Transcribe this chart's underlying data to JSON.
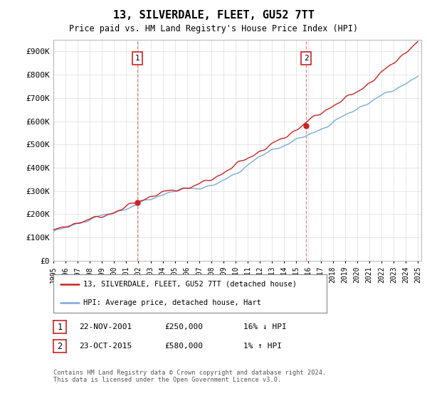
{
  "title": "13, SILVERDALE, FLEET, GU52 7TT",
  "subtitle": "Price paid vs. HM Land Registry's House Price Index (HPI)",
  "ylim": [
    0,
    950000
  ],
  "yticks": [
    0,
    100000,
    200000,
    300000,
    400000,
    500000,
    600000,
    700000,
    800000,
    900000
  ],
  "ytick_labels": [
    "£0",
    "£100K",
    "£200K",
    "£300K",
    "£400K",
    "£500K",
    "£600K",
    "£700K",
    "£800K",
    "£900K"
  ],
  "hpi_color": "#7aaadd",
  "price_color": "#cc2222",
  "vline_color": "#dd6666",
  "bg_color": "#ffffff",
  "grid_color": "#dddddd",
  "legend_line1": "13, SILVERDALE, FLEET, GU52 7TT (detached house)",
  "legend_line2": "HPI: Average price, detached house, Hart",
  "ann1_date": "22-NOV-2001",
  "ann1_price": "£250,000",
  "ann1_hpi": "16% ↓ HPI",
  "ann2_date": "23-OCT-2015",
  "ann2_price": "£580,000",
  "ann2_hpi": "1% ↑ HPI",
  "footer": "Contains HM Land Registry data © Crown copyright and database right 2024.\nThis data is licensed under the Open Government Licence v3.0.",
  "x_start_year": 1995,
  "x_end_year": 2025,
  "sale1_year": 2001.9,
  "sale1_value": 250000,
  "sale2_year": 2015.8,
  "sale2_value": 580000
}
